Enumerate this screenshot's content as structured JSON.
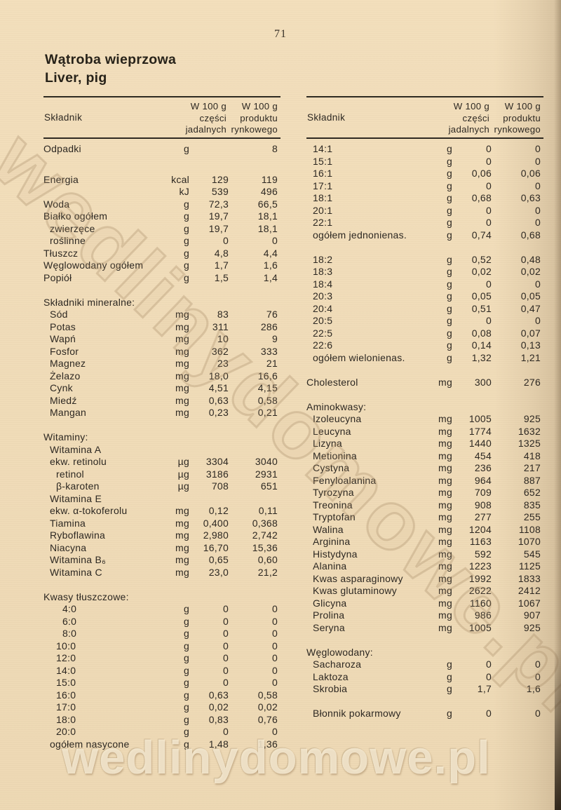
{
  "page": {
    "number": "71",
    "title_pl": "Wątroba wieprzowa",
    "title_en": "Liver, pig"
  },
  "table_header": {
    "col_label": "Składnik",
    "col1_lines": [
      "W 100 g",
      "części",
      "jadalnych"
    ],
    "col2_lines": [
      "W 100 g",
      "produktu",
      "rynkowego"
    ]
  },
  "left_table_rows": [
    {
      "label": "Odpadki",
      "indent": 0,
      "unit": "g",
      "v1": "",
      "v2": "8"
    },
    {
      "gap": 1.5
    },
    {
      "label": "Energia",
      "indent": 0,
      "unit": "kcal",
      "v1": "129",
      "v2": "119"
    },
    {
      "label": "",
      "indent": 0,
      "unit": "kJ",
      "v1": "539",
      "v2": "496"
    },
    {
      "label": "Woda",
      "indent": 0,
      "unit": "g",
      "v1": "72,3",
      "v2": "66,5"
    },
    {
      "label": "Białko ogółem",
      "indent": 0,
      "unit": "g",
      "v1": "19,7",
      "v2": "18,1"
    },
    {
      "label": "zwierzęce",
      "indent": 1,
      "unit": "g",
      "v1": "19,7",
      "v2": "18,1"
    },
    {
      "label": "roślinne",
      "indent": 1,
      "unit": "g",
      "v1": "0",
      "v2": "0"
    },
    {
      "label": "Tłuszcz",
      "indent": 0,
      "unit": "g",
      "v1": "4,8",
      "v2": "4,4"
    },
    {
      "label": "Węglowodany ogółem",
      "indent": 0,
      "unit": "g",
      "v1": "1,7",
      "v2": "1,6"
    },
    {
      "label": "Popiół",
      "indent": 0,
      "unit": "g",
      "v1": "1,5",
      "v2": "1,4"
    },
    {
      "gap": 1
    },
    {
      "label": "Składniki mineralne:",
      "indent": 0,
      "unit": "",
      "v1": "",
      "v2": ""
    },
    {
      "label": "Sód",
      "indent": 1,
      "unit": "mg",
      "v1": "83",
      "v2": "76"
    },
    {
      "label": "Potas",
      "indent": 1,
      "unit": "mg",
      "v1": "311",
      "v2": "286"
    },
    {
      "label": "Wapń",
      "indent": 1,
      "unit": "mg",
      "v1": "10",
      "v2": "9"
    },
    {
      "label": "Fosfor",
      "indent": 1,
      "unit": "mg",
      "v1": "362",
      "v2": "333"
    },
    {
      "label": "Magnez",
      "indent": 1,
      "unit": "mg",
      "v1": "23",
      "v2": "21"
    },
    {
      "label": "Żelazo",
      "indent": 1,
      "unit": "mg",
      "v1": "18,0",
      "v2": "16,6"
    },
    {
      "label": "Cynk",
      "indent": 1,
      "unit": "mg",
      "v1": "4,51",
      "v2": "4,15"
    },
    {
      "label": "Miedź",
      "indent": 1,
      "unit": "mg",
      "v1": "0,63",
      "v2": "0,58"
    },
    {
      "label": "Mangan",
      "indent": 1,
      "unit": "mg",
      "v1": "0,23",
      "v2": "0,21"
    },
    {
      "gap": 1
    },
    {
      "label": "Witaminy:",
      "indent": 0,
      "unit": "",
      "v1": "",
      "v2": ""
    },
    {
      "label": "Witamina A",
      "indent": 1,
      "unit": "",
      "v1": "",
      "v2": ""
    },
    {
      "label": "ekw. retinolu",
      "indent": 1,
      "unit": "µg",
      "v1": "3304",
      "v2": "3040"
    },
    {
      "label": "retinol",
      "indent": 2,
      "unit": "µg",
      "v1": "3186",
      "v2": "2931"
    },
    {
      "label": "β-karoten",
      "indent": 2,
      "unit": "µg",
      "v1": "708",
      "v2": "651"
    },
    {
      "label": "Witamina E",
      "indent": 1,
      "unit": "",
      "v1": "",
      "v2": ""
    },
    {
      "label": "ekw. α-tokoferolu",
      "indent": 1,
      "unit": "mg",
      "v1": "0,12",
      "v2": "0,11"
    },
    {
      "label": "Tiamina",
      "indent": 1,
      "unit": "mg",
      "v1": "0,400",
      "v2": "0,368"
    },
    {
      "label": "Ryboflawina",
      "indent": 1,
      "unit": "mg",
      "v1": "2,980",
      "v2": "2,742"
    },
    {
      "label": "Niacyna",
      "indent": 1,
      "unit": "mg",
      "v1": "16,70",
      "v2": "15,36"
    },
    {
      "label": "Witamina B₆",
      "indent": 1,
      "unit": "mg",
      "v1": "0,65",
      "v2": "0,60"
    },
    {
      "label": "Witamina C",
      "indent": 1,
      "unit": "mg",
      "v1": "23,0",
      "v2": "21,2"
    },
    {
      "gap": 1
    },
    {
      "label": "Kwasy tłuszczowe:",
      "indent": 0,
      "unit": "",
      "v1": "",
      "v2": ""
    },
    {
      "label": "4:0",
      "indent": 3,
      "unit": "g",
      "v1": "0",
      "v2": "0"
    },
    {
      "label": "6:0",
      "indent": 3,
      "unit": "g",
      "v1": "0",
      "v2": "0"
    },
    {
      "label": "8:0",
      "indent": 3,
      "unit": "g",
      "v1": "0",
      "v2": "0"
    },
    {
      "label": "10:0",
      "indent": 2,
      "unit": "g",
      "v1": "0",
      "v2": "0"
    },
    {
      "label": "12:0",
      "indent": 2,
      "unit": "g",
      "v1": "0",
      "v2": "0"
    },
    {
      "label": "14:0",
      "indent": 2,
      "unit": "g",
      "v1": "0",
      "v2": "0"
    },
    {
      "label": "15:0",
      "indent": 2,
      "unit": "g",
      "v1": "0",
      "v2": "0"
    },
    {
      "label": "16:0",
      "indent": 2,
      "unit": "g",
      "v1": "0,63",
      "v2": "0,58"
    },
    {
      "label": "17:0",
      "indent": 2,
      "unit": "g",
      "v1": "0,02",
      "v2": "0,02"
    },
    {
      "label": "18:0",
      "indent": 2,
      "unit": "g",
      "v1": "0,83",
      "v2": "0,76"
    },
    {
      "label": "20:0",
      "indent": 2,
      "unit": "g",
      "v1": "0",
      "v2": "0"
    },
    {
      "label": "ogółem nasycone",
      "indent": 1,
      "unit": "g",
      "v1": "1,48",
      "v2": "1,36"
    }
  ],
  "right_table_rows": [
    {
      "label": "14:1",
      "indent": 1,
      "unit": "g",
      "v1": "0",
      "v2": "0"
    },
    {
      "label": "15:1",
      "indent": 1,
      "unit": "g",
      "v1": "0",
      "v2": "0"
    },
    {
      "label": "16:1",
      "indent": 1,
      "unit": "g",
      "v1": "0,06",
      "v2": "0,06"
    },
    {
      "label": "17:1",
      "indent": 1,
      "unit": "g",
      "v1": "0",
      "v2": "0"
    },
    {
      "label": "18:1",
      "indent": 1,
      "unit": "g",
      "v1": "0,68",
      "v2": "0,63"
    },
    {
      "label": "20:1",
      "indent": 1,
      "unit": "g",
      "v1": "0",
      "v2": "0"
    },
    {
      "label": "22:1",
      "indent": 1,
      "unit": "g",
      "v1": "0",
      "v2": "0"
    },
    {
      "label": "ogółem jednonienas.",
      "indent": 1,
      "unit": "g",
      "v1": "0,74",
      "v2": "0,68"
    },
    {
      "gap": 1
    },
    {
      "label": "18:2",
      "indent": 1,
      "unit": "g",
      "v1": "0,52",
      "v2": "0,48"
    },
    {
      "label": "18:3",
      "indent": 1,
      "unit": "g",
      "v1": "0,02",
      "v2": "0,02"
    },
    {
      "label": "18:4",
      "indent": 1,
      "unit": "g",
      "v1": "0",
      "v2": "0"
    },
    {
      "label": "20:3",
      "indent": 1,
      "unit": "g",
      "v1": "0,05",
      "v2": "0,05"
    },
    {
      "label": "20:4",
      "indent": 1,
      "unit": "g",
      "v1": "0,51",
      "v2": "0,47"
    },
    {
      "label": "20:5",
      "indent": 1,
      "unit": "g",
      "v1": "0",
      "v2": "0"
    },
    {
      "label": "22:5",
      "indent": 1,
      "unit": "g",
      "v1": "0,08",
      "v2": "0,07"
    },
    {
      "label": "22:6",
      "indent": 1,
      "unit": "g",
      "v1": "0,14",
      "v2": "0,13"
    },
    {
      "label": "ogółem wielonienas.",
      "indent": 1,
      "unit": "g",
      "v1": "1,32",
      "v2": "1,21"
    },
    {
      "gap": 1
    },
    {
      "label": "Cholesterol",
      "indent": 0,
      "unit": "mg",
      "v1": "300",
      "v2": "276"
    },
    {
      "gap": 1
    },
    {
      "label": "Aminokwasy:",
      "indent": 0,
      "unit": "",
      "v1": "",
      "v2": ""
    },
    {
      "label": "Izoleucyna",
      "indent": 1,
      "unit": "mg",
      "v1": "1005",
      "v2": "925"
    },
    {
      "label": "Leucyna",
      "indent": 1,
      "unit": "mg",
      "v1": "1774",
      "v2": "1632"
    },
    {
      "label": "Lizyna",
      "indent": 1,
      "unit": "mg",
      "v1": "1440",
      "v2": "1325"
    },
    {
      "label": "Metionina",
      "indent": 1,
      "unit": "mg",
      "v1": "454",
      "v2": "418"
    },
    {
      "label": "Cystyna",
      "indent": 1,
      "unit": "mg",
      "v1": "236",
      "v2": "217"
    },
    {
      "label": "Fenyloalanina",
      "indent": 1,
      "unit": "mg",
      "v1": "964",
      "v2": "887"
    },
    {
      "label": "Tyrozyna",
      "indent": 1,
      "unit": "mg",
      "v1": "709",
      "v2": "652"
    },
    {
      "label": "Treonina",
      "indent": 1,
      "unit": "mg",
      "v1": "908",
      "v2": "835"
    },
    {
      "label": "Tryptofan",
      "indent": 1,
      "unit": "mg",
      "v1": "277",
      "v2": "255"
    },
    {
      "label": "Walina",
      "indent": 1,
      "unit": "mg",
      "v1": "1204",
      "v2": "1108"
    },
    {
      "label": "Arginina",
      "indent": 1,
      "unit": "mg",
      "v1": "1163",
      "v2": "1070"
    },
    {
      "label": "Histydyna",
      "indent": 1,
      "unit": "mg",
      "v1": "592",
      "v2": "545"
    },
    {
      "label": "Alanina",
      "indent": 1,
      "unit": "mg",
      "v1": "1223",
      "v2": "1125"
    },
    {
      "label": "Kwas asparaginowy",
      "indent": 1,
      "unit": "mg",
      "v1": "1992",
      "v2": "1833"
    },
    {
      "label": "Kwas glutaminowy",
      "indent": 1,
      "unit": "mg",
      "v1": "2622",
      "v2": "2412"
    },
    {
      "label": "Glicyna",
      "indent": 1,
      "unit": "mg",
      "v1": "1160",
      "v2": "1067"
    },
    {
      "label": "Prolina",
      "indent": 1,
      "unit": "mg",
      "v1": "986",
      "v2": "907"
    },
    {
      "label": "Seryna",
      "indent": 1,
      "unit": "mg",
      "v1": "1005",
      "v2": "925"
    },
    {
      "gap": 1
    },
    {
      "label": "Węglowodany:",
      "indent": 0,
      "unit": "",
      "v1": "",
      "v2": ""
    },
    {
      "label": "Sacharoza",
      "indent": 1,
      "unit": "g",
      "v1": "0",
      "v2": "0"
    },
    {
      "label": "Laktoza",
      "indent": 1,
      "unit": "g",
      "v1": "0",
      "v2": "0"
    },
    {
      "label": "Skrobia",
      "indent": 1,
      "unit": "g",
      "v1": "1,7",
      "v2": "1,6"
    },
    {
      "gap": 1
    },
    {
      "label": "Błonnik pokarmowy",
      "indent": 1,
      "unit": "g",
      "v1": "0",
      "v2": "0"
    }
  ],
  "watermark": {
    "diagonal_text": "wedlinydomowe.pl",
    "bottom_text": "wedlinydomowe.pl"
  },
  "colors": {
    "paper": "#f2ddb8",
    "ink": "#2d2822"
  }
}
